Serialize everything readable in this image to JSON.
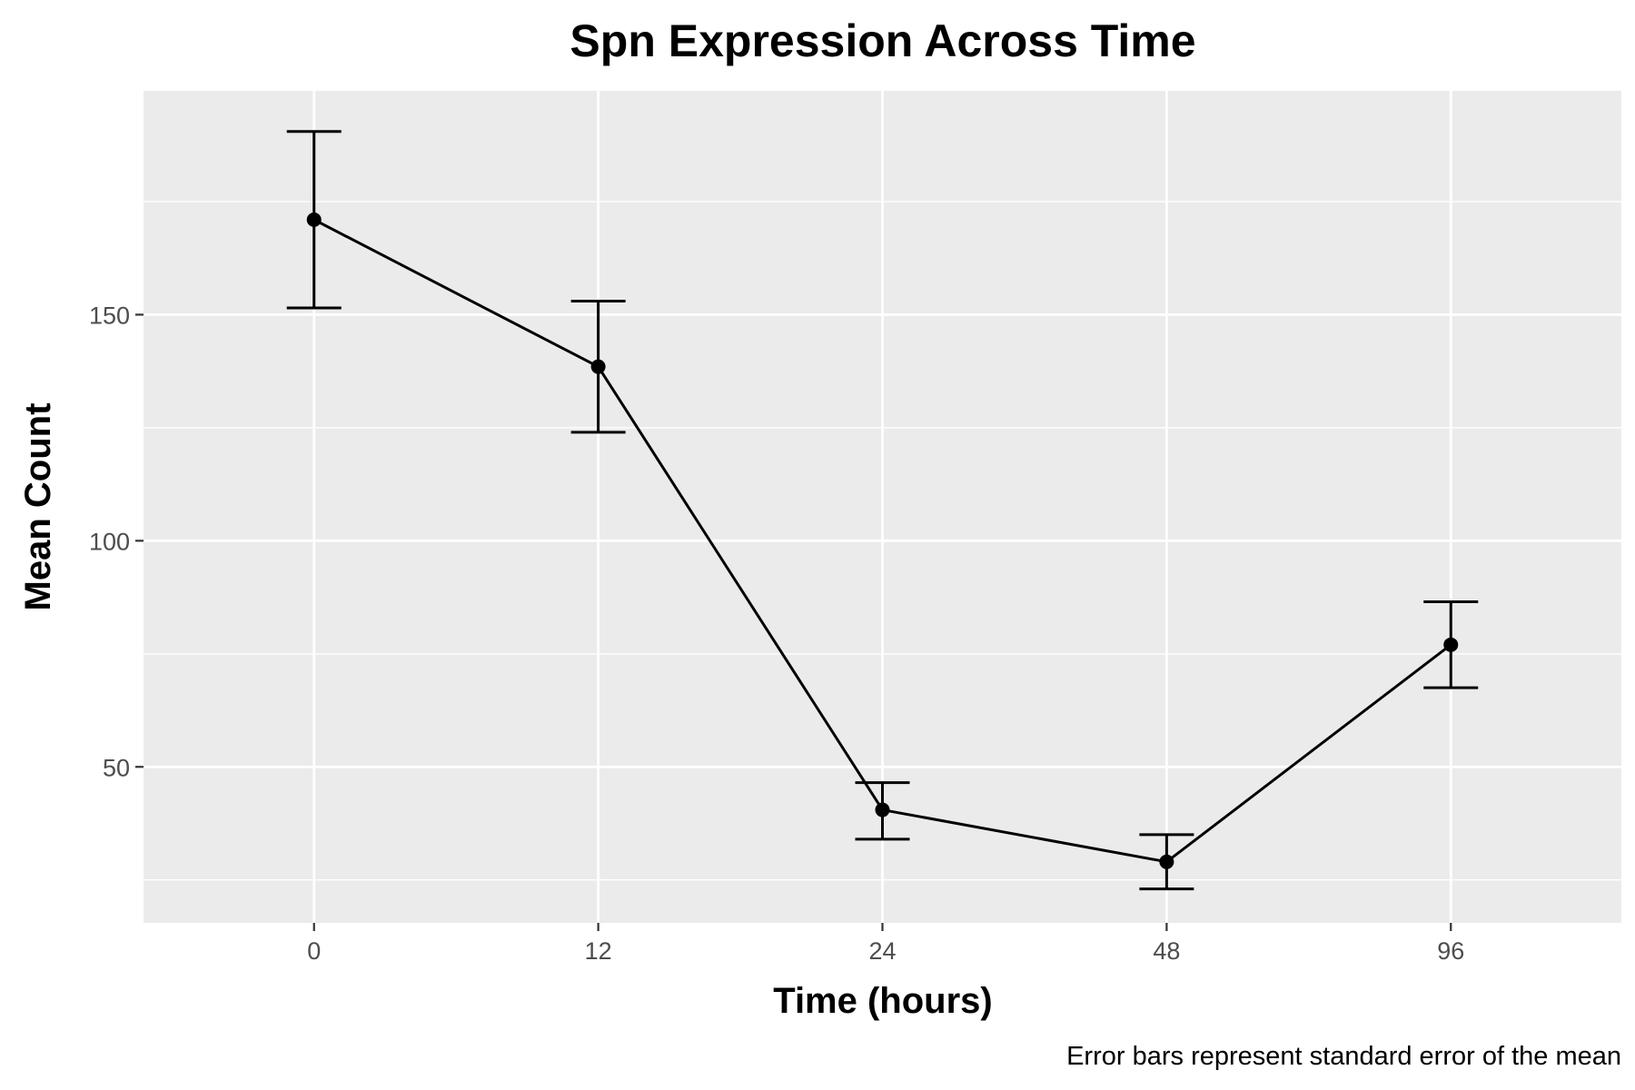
{
  "chart_data": {
    "type": "line",
    "title": "Spn Expression Across Time",
    "xlabel": "Time (hours)",
    "ylabel": "Mean Count",
    "caption": "Error bars represent standard error of the mean",
    "categories": [
      "0",
      "12",
      "24",
      "48",
      "96"
    ],
    "series": [
      {
        "values": [
          171,
          138.5,
          40.5,
          29,
          77
        ],
        "error_low": [
          151.5,
          124,
          34,
          23,
          67.5
        ],
        "error_high": [
          190.5,
          153,
          46.5,
          35,
          86.5
        ]
      }
    ],
    "yticks": [
      50,
      100,
      150
    ],
    "ylim": [
      15.5,
      199.5
    ],
    "grid": true,
    "background": "#ebebeb",
    "gridcolor": "#ffffff",
    "linecolor": "#000000"
  }
}
